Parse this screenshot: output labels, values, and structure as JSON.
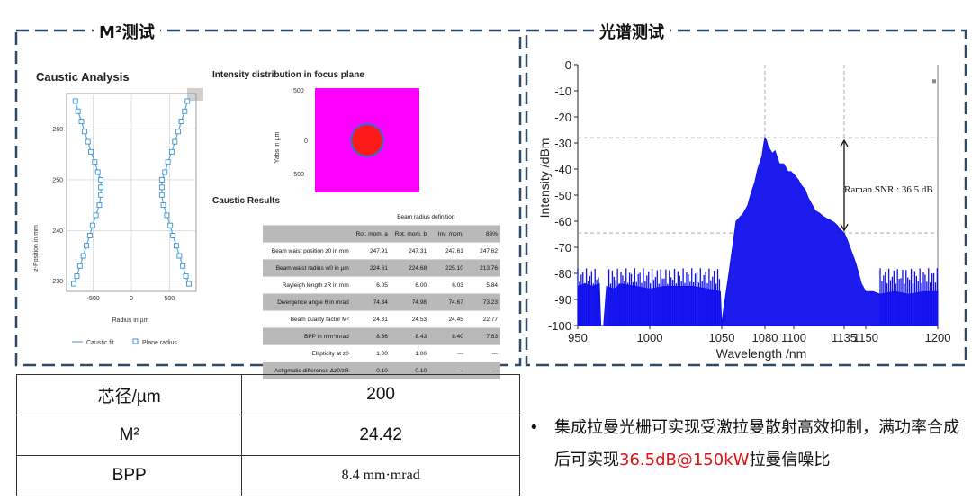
{
  "sections": {
    "m2_title": "M²测试",
    "spectrum_title": "光谱测试"
  },
  "caustic": {
    "title": "Caustic Analysis",
    "ylabel": "z-Position in mm",
    "xlabel": "Radius in µm",
    "legend_fit": "Caustic fit",
    "legend_points": "Plane radius",
    "yticks": [
      "260",
      "250",
      "240",
      "230"
    ],
    "xticks": [
      "-500",
      "0",
      "500"
    ]
  },
  "intensity": {
    "title": "Intensity distribution in focus plane",
    "ylabel": "Yabs in µm",
    "yticks": [
      "500",
      "0",
      "-500"
    ]
  },
  "results": {
    "title": "Caustic Results",
    "header_group": "Beam radius definition",
    "columns": [
      "Rot. mom. a",
      "Rot. mom. b",
      "Inv. mom.",
      "86%"
    ],
    "rows": [
      {
        "label": "Beam waist position z0 in mm",
        "values": [
          "247.91",
          "247.31",
          "247.61",
          "247.62"
        ]
      },
      {
        "label": "Beam waist radius w0 in µm",
        "values": [
          "224.61",
          "224.68",
          "225.10",
          "213.76"
        ]
      },
      {
        "label": "Rayleigh length zR in mm",
        "values": [
          "6.05",
          "6.00",
          "6.03",
          "5.84"
        ]
      },
      {
        "label": "Divergence angle θ in mrad",
        "values": [
          "74.34",
          "74.98",
          "74.67",
          "73.23"
        ]
      },
      {
        "label": "Beam quality factor M²",
        "values": [
          "24.31",
          "24.53",
          "24.45",
          "22.77"
        ]
      },
      {
        "label": "BPP in mm*mrad",
        "values": [
          "8.36",
          "8.43",
          "8.40",
          "7.83"
        ]
      },
      {
        "label": "Ellipticity at z0",
        "values": [
          "1.00",
          "1.00",
          "---",
          "---"
        ]
      },
      {
        "label": "Astigmatic difference Δz0/zR",
        "values": [
          "0.10",
          "0.10",
          "---",
          "---"
        ]
      }
    ]
  },
  "spec_table": [
    {
      "label": "芯径/µm",
      "value": "200"
    },
    {
      "label": "M²",
      "value": "24.42"
    },
    {
      "label": "BPP",
      "value": "8.4 mm·mrad"
    }
  ],
  "bullet": {
    "marker": "•",
    "text_before": "集成拉曼光栅可实现受激拉曼散射高效抑制，满功率合成后可实现",
    "highlight": "36.5dB@150kW",
    "text_after": "拉曼信噪比"
  },
  "colors": {
    "dash_border": "#2f4a66",
    "caustic_line": "#5aaad8",
    "spectrum_line": "#1010ee",
    "magenta": "#ff00ff",
    "highlight": "#e01010"
  },
  "chart_data": [
    {
      "type": "scatter",
      "title": "Caustic Analysis",
      "xlabel": "Radius in µm",
      "ylabel": "z-Position in mm",
      "xlim": [
        -850,
        850
      ],
      "ylim": [
        228,
        267
      ],
      "series": [
        {
          "name": "Plane radius",
          "points": [
            [
              -735,
              265.5
            ],
            [
              -700,
              263.5
            ],
            [
              -655,
              261.5
            ],
            [
              -615,
              259.5
            ],
            [
              -570,
              257.5
            ],
            [
              -530,
              255.5
            ],
            [
              -480,
              253.5
            ],
            [
              -440,
              251.5
            ],
            [
              -400,
              250
            ],
            [
              -400,
              248.5
            ],
            [
              -400,
              247
            ],
            [
              -420,
              245
            ],
            [
              -465,
              243
            ],
            [
              -510,
              241
            ],
            [
              -545,
              239
            ],
            [
              -590,
              237
            ],
            [
              -630,
              235
            ],
            [
              -675,
              233
            ],
            [
              -715,
              231
            ],
            [
              -755,
              229.5
            ],
            [
              735,
              265.5
            ],
            [
              700,
              263.5
            ],
            [
              655,
              261.5
            ],
            [
              615,
              259.5
            ],
            [
              570,
              257.5
            ],
            [
              530,
              255.5
            ],
            [
              480,
              253.5
            ],
            [
              440,
              251.5
            ],
            [
              400,
              250
            ],
            [
              400,
              248.5
            ],
            [
              400,
              247
            ],
            [
              420,
              245
            ],
            [
              465,
              243
            ],
            [
              510,
              241
            ],
            [
              545,
              239
            ],
            [
              590,
              237
            ],
            [
              630,
              235
            ],
            [
              675,
              233
            ],
            [
              715,
              231
            ],
            [
              755,
              229.5
            ]
          ]
        },
        {
          "name": "Caustic fit",
          "type": "line"
        }
      ]
    },
    {
      "type": "line",
      "xlabel": "Wavelength /nm",
      "ylabel": "Intensity /dBm",
      "xlim": [
        950,
        1200
      ],
      "ylim": [
        -100,
        0
      ],
      "xticks": [
        "950",
        "1000",
        "1050",
        "1080",
        "1100",
        "1135",
        "1150",
        "1200"
      ],
      "yticks": [
        "0",
        "-10",
        "-20",
        "-30",
        "-40",
        "-50",
        "-60",
        "-70",
        "-80",
        "-90",
        "-100"
      ],
      "annotation": "Raman SNR : 36.5 dB",
      "reference_lines": {
        "x": [
          1080,
          1135
        ],
        "y": [
          -28,
          -64.5
        ]
      },
      "series": [
        {
          "x": [
            950,
            955,
            960,
            965,
            966,
            968,
            970,
            975,
            980,
            990,
            1000,
            1010,
            1020,
            1030,
            1040,
            1049,
            1050,
            1051,
            1055,
            1060,
            1065,
            1068,
            1070,
            1073,
            1075,
            1078,
            1079,
            1080,
            1081,
            1082,
            1083,
            1085,
            1087,
            1090,
            1093,
            1096,
            1098,
            1100,
            1103,
            1105,
            1108,
            1110,
            1113,
            1115,
            1118,
            1120,
            1123,
            1125,
            1128,
            1130,
            1132,
            1134,
            1135,
            1137,
            1139,
            1141,
            1143,
            1145,
            1147,
            1150,
            1155,
            1160,
            1170,
            1180,
            1190,
            1200
          ],
          "y": [
            -85,
            -84,
            -85,
            -84,
            -100,
            -100,
            -85,
            -86,
            -84,
            -85,
            -86,
            -85,
            -85,
            -85,
            -86,
            -87,
            -100,
            -95,
            -80,
            -60,
            -57,
            -54,
            -50,
            -45,
            -40,
            -35,
            -31,
            -28,
            -29,
            -31,
            -32,
            -34,
            -33,
            -38,
            -38,
            -41,
            -41,
            -42,
            -44,
            -46,
            -48,
            -51,
            -54,
            -56,
            -57,
            -58,
            -59,
            -59.5,
            -60.5,
            -61.5,
            -63,
            -64,
            -64.5,
            -67,
            -70,
            -73,
            -76,
            -80,
            -84,
            -87,
            -87,
            -88,
            -87,
            -88,
            -87,
            -87
          ]
        }
      ]
    }
  ]
}
